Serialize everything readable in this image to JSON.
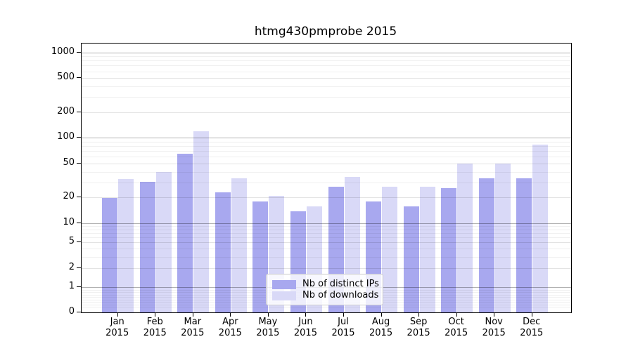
{
  "title": "htmg430pmprobe 2015",
  "chart_data": {
    "type": "bar",
    "title": "htmg430pmprobe 2015",
    "yscale": "symlog",
    "grid": true,
    "legend_position": "lower center",
    "ylim": [
      0,
      1300
    ],
    "categories": [
      {
        "month": "Jan",
        "year": "2015"
      },
      {
        "month": "Feb",
        "year": "2015"
      },
      {
        "month": "Mar",
        "year": "2015"
      },
      {
        "month": "Apr",
        "year": "2015"
      },
      {
        "month": "May",
        "year": "2015"
      },
      {
        "month": "Jun",
        "year": "2015"
      },
      {
        "month": "Jul",
        "year": "2015"
      },
      {
        "month": "Aug",
        "year": "2015"
      },
      {
        "month": "Sep",
        "year": "2015"
      },
      {
        "month": "Oct",
        "year": "2015"
      },
      {
        "month": "Nov",
        "year": "2015"
      },
      {
        "month": "Dec",
        "year": "2015"
      }
    ],
    "yticks": [
      {
        "label": "1000",
        "value": 1000
      },
      {
        "label": "500",
        "value": 500
      },
      {
        "label": "200",
        "value": 200
      },
      {
        "label": "100",
        "value": 100
      },
      {
        "label": "50",
        "value": 50
      },
      {
        "label": "20",
        "value": 20
      },
      {
        "label": "10",
        "value": 10
      },
      {
        "label": "5",
        "value": 5
      },
      {
        "label": "2",
        "value": 2
      },
      {
        "label": "1",
        "value": 1
      },
      {
        "label": "0",
        "value": 0
      }
    ],
    "series": [
      {
        "name": "Nb of distinct IPs",
        "color": "#a8a8ef",
        "values": [
          20,
          31,
          66,
          23,
          18,
          14,
          27,
          18,
          16,
          26,
          34,
          34
        ]
      },
      {
        "name": "Nb of downloads",
        "color": "#d9d9f7",
        "values": [
          33,
          40,
          120,
          34,
          21,
          16,
          35,
          27,
          27,
          50,
          50,
          84
        ]
      }
    ]
  }
}
